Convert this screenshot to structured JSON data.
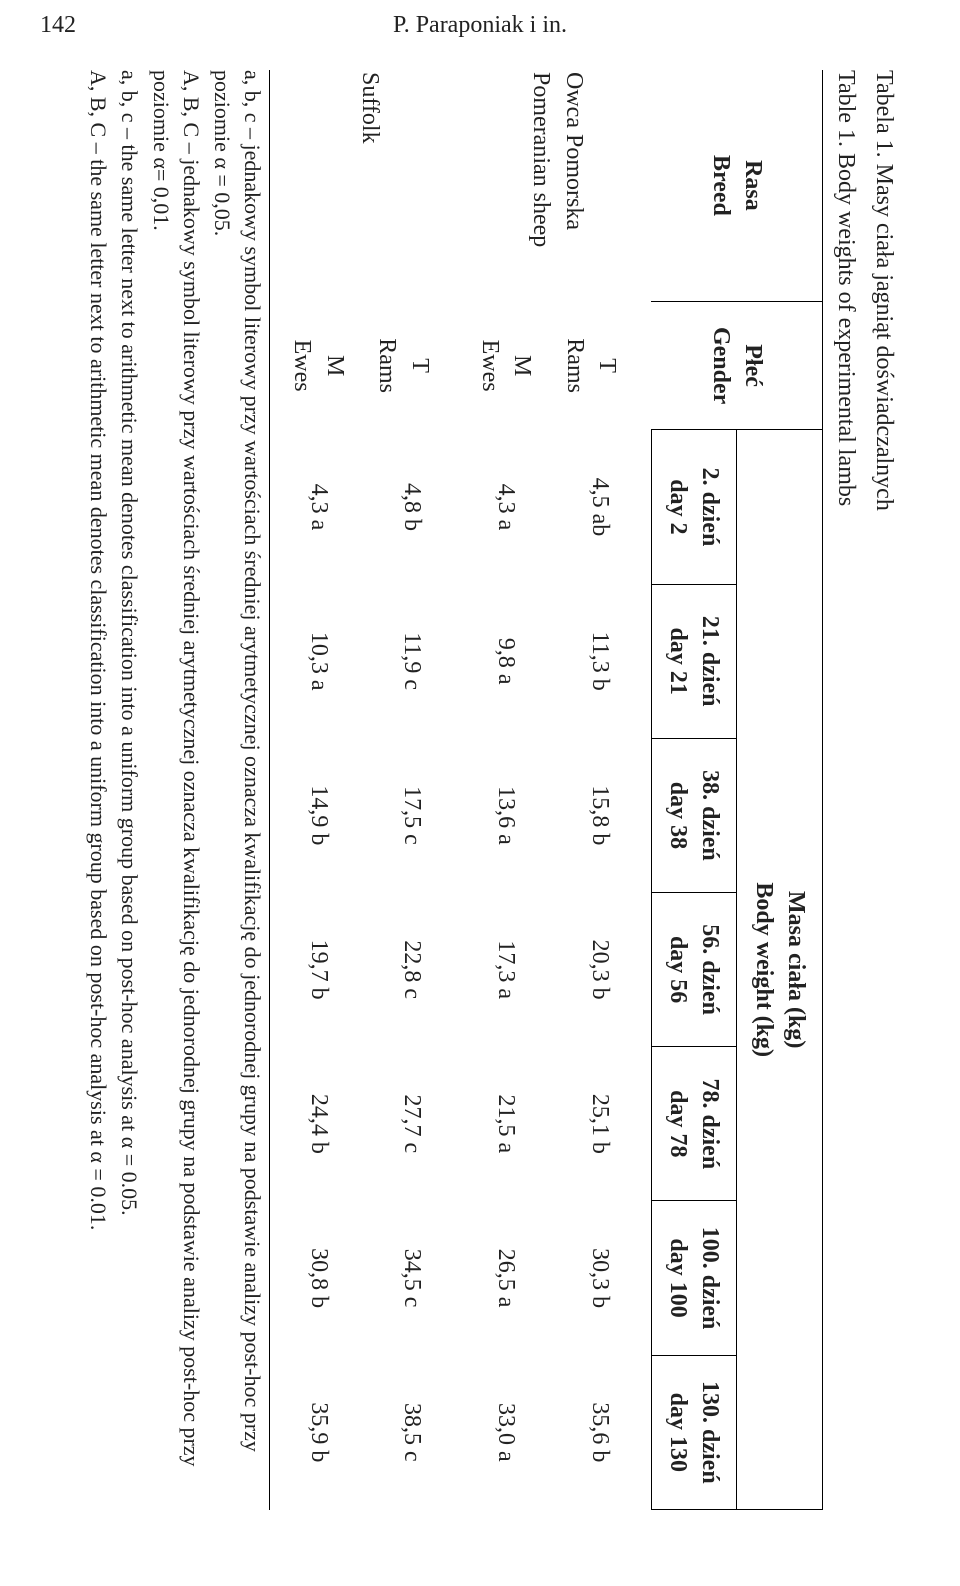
{
  "page_number": "142",
  "running_head": "P. Paraponiak i in.",
  "table": {
    "title_pl": "Tabela 1. Masy ciała jagniąt doświadczalnych",
    "title_en": "Table 1. Body weights of experimental lambs",
    "head": {
      "breed_pl": "Rasa",
      "breed_en": "Breed",
      "gender_pl": "Płeć",
      "gender_en": "Gender",
      "body_weight_pl": "Masa ciała (kg)",
      "body_weight_en": "Body weight (kg)",
      "days": {
        "d2": {
          "pl": "2. dzień",
          "en": "day 2"
        },
        "d21": {
          "pl": "21. dzień",
          "en": "day 21"
        },
        "d38": {
          "pl": "38. dzień",
          "en": "day 38"
        },
        "d56": {
          "pl": "56. dzień",
          "en": "day 56"
        },
        "d78": {
          "pl": "78. dzień",
          "en": "day 78"
        },
        "d100": {
          "pl": "100. dzień",
          "en": "day 100"
        },
        "d130": {
          "pl": "130. dzień",
          "en": "day 130"
        }
      }
    },
    "breeds": {
      "pom": {
        "pl": "Owca Pomorska",
        "en": "Pomeranian sheep"
      },
      "suf": {
        "pl": "Suffolk",
        "en": ""
      }
    },
    "genders": {
      "T": {
        "code": "T",
        "label": "Rams"
      },
      "M": {
        "code": "M",
        "label": "Ewes"
      }
    },
    "rows": {
      "pom_T": {
        "d2": "4,5 ab",
        "d21": "11,3 b",
        "d38": "15,8 b",
        "d56": "20,3 b",
        "d78": "25,1 b",
        "d100": "30,3 b",
        "d130": "35,6 b"
      },
      "pom_M": {
        "d2": "4,3 a",
        "d21": "9,8 a",
        "d38": "13,6 a",
        "d56": "17,3 a",
        "d78": "21,5 a",
        "d100": "26,5 a",
        "d130": "33,0 a"
      },
      "suf_T": {
        "d2": "4,8 b",
        "d21": "11,9 c",
        "d38": "17,5 c",
        "d56": "22,8 c",
        "d78": "27,7 c",
        "d100": "34,5 c",
        "d130": "38,5 c"
      },
      "suf_M": {
        "d2": "4,3 a",
        "d21": "10,3 a",
        "d38": "14,9 b",
        "d56": "19,7 b",
        "d78": "24,4 b",
        "d100": "30,8 b",
        "d130": "35,9 b"
      }
    }
  },
  "footnotes": {
    "f1": "a, b, c – jednakowy symbol literowy przy wartościach średniej arytmetycznej oznacza kwalifikację do jednorodnej grupy na podstawie analizy post-hoc przy poziomie α = 0,05.",
    "f2": "A, B, C – jednakowy symbol literowy przy wartościach średniej arytmetycznej oznacza kwalifikację do jednorodnej grupy na podstawie analizy post-hoc przy poziomie α= 0,01.",
    "f3": "a, b, c – the same letter next to arithmetic mean denotes classification into a uniform group based on post-hoc analysis at  α = 0.05.",
    "f4": "A, B, C – the same letter next to arithmetic mean denotes classification into a uniform group based on post-hoc analysis at α = 0.01."
  }
}
